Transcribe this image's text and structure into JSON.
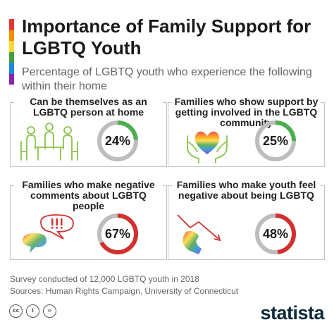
{
  "title": "Importance of Family Support for LGBTQ Youth",
  "subtitle": "Percentage of LGBTQ youth who experience the following within their home",
  "rainbow_colors": [
    "#e53935",
    "#fb8c00",
    "#fdd835",
    "#43a047",
    "#1e88e5",
    "#8e24aa"
  ],
  "colors": {
    "support": "#4caf50",
    "negative": "#d32f2f",
    "track": "#bdbdbd"
  },
  "chart_data": {
    "type": "pie",
    "categories": [
      "Can be themselves as an LGBTQ person at home",
      "Families who show support by getting involved in the LGBTQ community",
      "Families who make negative comments about LGBTQ people",
      "Families who make youth feel negative about being LGBTQ"
    ],
    "values": [
      24,
      25,
      67,
      48
    ],
    "value_labels": [
      "24%",
      "25%",
      "67%",
      "48%"
    ],
    "unit": "%",
    "panels": [
      {
        "label": "Can be themselves as an LGBTQ person at home",
        "value": 24,
        "value_label": "24%",
        "color": "#4caf50",
        "icon": "family-table-icon"
      },
      {
        "label": "Families who show support by getting involved in the LGBTQ community",
        "value": 25,
        "value_label": "25%",
        "color": "#4caf50",
        "icon": "rainbow-heart-hands-icon"
      },
      {
        "label": "Families who make negative comments about LGBTQ people",
        "value": 67,
        "value_label": "67%",
        "color": "#d32f2f",
        "icon": "speech-bubbles-icon"
      },
      {
        "label": "Families who make youth feel negative about being LGBTQ",
        "value": 48,
        "value_label": "48%",
        "color": "#d32f2f",
        "icon": "sad-person-down-arrow-icon"
      }
    ]
  },
  "footer": {
    "note": "Survey conducted of 12,000 LGBTQ youth in 2018",
    "sources": "Sources: Human Rights Campaign, University of Connecticut",
    "license_icons": [
      "cc",
      "i",
      "="
    ],
    "brand": "statista"
  }
}
